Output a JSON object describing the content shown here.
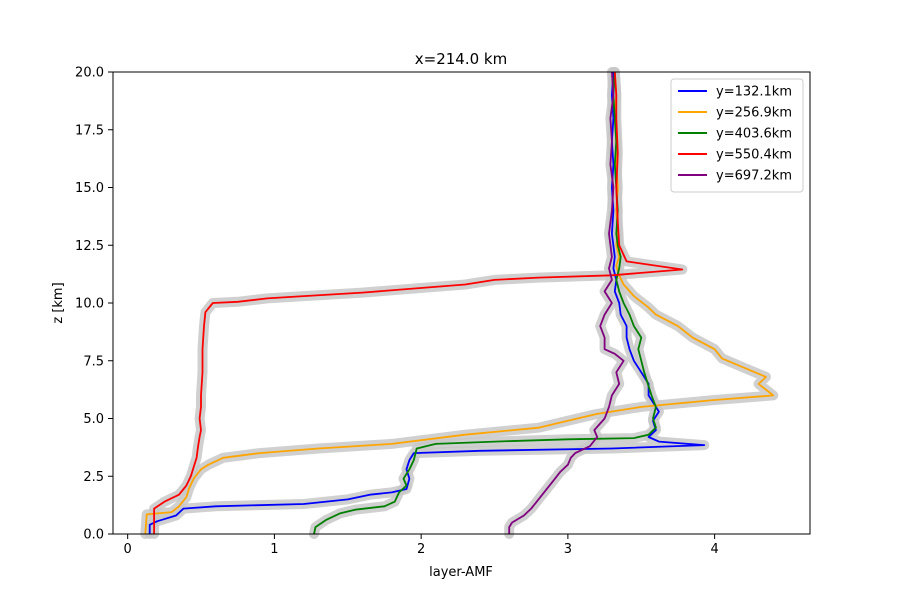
{
  "chart_data": {
    "type": "line",
    "title": "x=214.0 km",
    "xlabel": "layer-AMF",
    "ylabel": "z [km]",
    "xlim": [
      -0.1,
      4.65
    ],
    "ylim": [
      0,
      20
    ],
    "xticks": [
      0,
      1,
      2,
      3,
      4
    ],
    "yticks": [
      0.0,
      2.5,
      5.0,
      7.5,
      10.0,
      12.5,
      15.0,
      17.5,
      20.0
    ],
    "ytick_labels": [
      "0.0",
      "2.5",
      "5.0",
      "7.5",
      "10.0",
      "12.5",
      "15.0",
      "17.5",
      "20.0"
    ],
    "grid": false,
    "legend_position": "top-right",
    "uncertainty_band_color": "#c8c8c8",
    "series": [
      {
        "name": "y=132.1km",
        "color": "#0000ff",
        "points": [
          [
            0.15,
            0
          ],
          [
            0.15,
            0.4
          ],
          [
            0.2,
            0.55
          ],
          [
            0.33,
            0.8
          ],
          [
            0.38,
            1.1
          ],
          [
            0.6,
            1.2
          ],
          [
            1.2,
            1.3
          ],
          [
            1.5,
            1.5
          ],
          [
            1.65,
            1.7
          ],
          [
            1.8,
            1.8
          ],
          [
            1.9,
            1.95
          ],
          [
            1.92,
            2.4
          ],
          [
            1.9,
            2.8
          ],
          [
            1.92,
            3.2
          ],
          [
            1.95,
            3.5
          ],
          [
            2.4,
            3.6
          ],
          [
            3.3,
            3.7
          ],
          [
            3.93,
            3.85
          ],
          [
            3.62,
            4.0
          ],
          [
            3.55,
            4.2
          ],
          [
            3.6,
            4.5
          ],
          [
            3.58,
            4.9
          ],
          [
            3.62,
            5.3
          ],
          [
            3.58,
            5.7
          ],
          [
            3.55,
            6.0
          ],
          [
            3.55,
            6.5
          ],
          [
            3.5,
            7.0
          ],
          [
            3.45,
            7.5
          ],
          [
            3.42,
            8.0
          ],
          [
            3.4,
            8.5
          ],
          [
            3.4,
            9.0
          ],
          [
            3.36,
            9.5
          ],
          [
            3.35,
            10.0
          ],
          [
            3.32,
            10.5
          ],
          [
            3.33,
            11.0
          ],
          [
            3.31,
            11.5
          ],
          [
            3.32,
            12.0
          ],
          [
            3.3,
            13.0
          ],
          [
            3.31,
            14.0
          ],
          [
            3.3,
            15.0
          ],
          [
            3.31,
            16.0
          ],
          [
            3.3,
            17.0
          ],
          [
            3.31,
            18.0
          ],
          [
            3.3,
            19.0
          ],
          [
            3.31,
            20.0
          ]
        ]
      },
      {
        "name": "y=256.9km",
        "color": "#ffa500",
        "points": [
          [
            0.12,
            0
          ],
          [
            0.13,
            0.85
          ],
          [
            0.3,
            0.95
          ],
          [
            0.35,
            1.2
          ],
          [
            0.4,
            1.6
          ],
          [
            0.42,
            2.0
          ],
          [
            0.45,
            2.4
          ],
          [
            0.5,
            2.8
          ],
          [
            0.55,
            3.0
          ],
          [
            0.65,
            3.3
          ],
          [
            0.9,
            3.5
          ],
          [
            1.3,
            3.7
          ],
          [
            1.8,
            3.9
          ],
          [
            2.3,
            4.3
          ],
          [
            2.8,
            4.6
          ],
          [
            3.0,
            4.9
          ],
          [
            3.2,
            5.2
          ],
          [
            3.5,
            5.5
          ],
          [
            4.0,
            5.8
          ],
          [
            4.4,
            6.0
          ],
          [
            4.3,
            6.5
          ],
          [
            4.35,
            6.8
          ],
          [
            4.2,
            7.2
          ],
          [
            4.05,
            7.6
          ],
          [
            4.0,
            8.0
          ],
          [
            3.85,
            8.5
          ],
          [
            3.75,
            9.0
          ],
          [
            3.6,
            9.5
          ],
          [
            3.55,
            9.8
          ],
          [
            3.45,
            10.3
          ],
          [
            3.38,
            10.8
          ],
          [
            3.35,
            11.2
          ],
          [
            3.33,
            11.6
          ],
          [
            3.35,
            12.0
          ],
          [
            3.33,
            12.5
          ],
          [
            3.34,
            13.0
          ],
          [
            3.33,
            14.0
          ],
          [
            3.34,
            15.0
          ],
          [
            3.33,
            16.0
          ],
          [
            3.33,
            17.0
          ],
          [
            3.32,
            18.0
          ],
          [
            3.33,
            19.0
          ],
          [
            3.32,
            20.0
          ]
        ]
      },
      {
        "name": "y=403.6km",
        "color": "#008000",
        "points": [
          [
            1.27,
            0
          ],
          [
            1.28,
            0.3
          ],
          [
            1.35,
            0.6
          ],
          [
            1.45,
            0.9
          ],
          [
            1.55,
            1.05
          ],
          [
            1.75,
            1.2
          ],
          [
            1.82,
            1.4
          ],
          [
            1.85,
            1.8
          ],
          [
            1.9,
            2.1
          ],
          [
            1.88,
            2.4
          ],
          [
            1.92,
            2.8
          ],
          [
            1.95,
            3.2
          ],
          [
            1.97,
            3.7
          ],
          [
            2.1,
            3.9
          ],
          [
            2.5,
            4.0
          ],
          [
            3.0,
            4.1
          ],
          [
            3.45,
            4.15
          ],
          [
            3.55,
            4.3
          ],
          [
            3.6,
            4.6
          ],
          [
            3.58,
            5.0
          ],
          [
            3.6,
            5.5
          ],
          [
            3.57,
            6.0
          ],
          [
            3.55,
            6.4
          ],
          [
            3.52,
            7.0
          ],
          [
            3.5,
            7.5
          ],
          [
            3.48,
            8.0
          ],
          [
            3.5,
            8.5
          ],
          [
            3.45,
            9.0
          ],
          [
            3.42,
            9.5
          ],
          [
            3.38,
            10.0
          ],
          [
            3.35,
            10.5
          ],
          [
            3.33,
            11.0
          ],
          [
            3.35,
            11.5
          ],
          [
            3.36,
            12.0
          ],
          [
            3.34,
            12.5
          ],
          [
            3.33,
            13.0
          ],
          [
            3.34,
            14.0
          ],
          [
            3.33,
            15.0
          ],
          [
            3.32,
            16.0
          ],
          [
            3.33,
            17.0
          ],
          [
            3.32,
            18.0
          ],
          [
            3.31,
            19.0
          ],
          [
            3.32,
            20.0
          ]
        ]
      },
      {
        "name": "y=550.4km",
        "color": "#ff0000",
        "points": [
          [
            0.18,
            0
          ],
          [
            0.18,
            1.1
          ],
          [
            0.25,
            1.4
          ],
          [
            0.35,
            1.7
          ],
          [
            0.4,
            2.1
          ],
          [
            0.43,
            2.5
          ],
          [
            0.45,
            2.9
          ],
          [
            0.47,
            3.3
          ],
          [
            0.48,
            3.8
          ],
          [
            0.49,
            4.2
          ],
          [
            0.5,
            4.5
          ],
          [
            0.49,
            5.0
          ],
          [
            0.5,
            5.5
          ],
          [
            0.5,
            6.0
          ],
          [
            0.51,
            7.0
          ],
          [
            0.51,
            8.0
          ],
          [
            0.52,
            9.0
          ],
          [
            0.53,
            9.6
          ],
          [
            0.58,
            10.0
          ],
          [
            0.75,
            10.05
          ],
          [
            0.95,
            10.2
          ],
          [
            1.2,
            10.3
          ],
          [
            1.6,
            10.45
          ],
          [
            2.3,
            10.8
          ],
          [
            2.5,
            11.0
          ],
          [
            2.8,
            11.1
          ],
          [
            3.3,
            11.2
          ],
          [
            3.78,
            11.45
          ],
          [
            3.4,
            11.8
          ],
          [
            3.35,
            12.5
          ],
          [
            3.34,
            13.5
          ],
          [
            3.33,
            15.0
          ],
          [
            3.34,
            16.5
          ],
          [
            3.33,
            18.0
          ],
          [
            3.33,
            19.0
          ],
          [
            3.32,
            20.0
          ]
        ]
      },
      {
        "name": "y=697.2km",
        "color": "#800080",
        "points": [
          [
            2.6,
            0
          ],
          [
            2.6,
            0.3
          ],
          [
            2.62,
            0.5
          ],
          [
            2.7,
            0.8
          ],
          [
            2.75,
            1.1
          ],
          [
            2.8,
            1.5
          ],
          [
            2.85,
            1.9
          ],
          [
            2.9,
            2.3
          ],
          [
            2.95,
            2.7
          ],
          [
            3.0,
            3.0
          ],
          [
            3.02,
            3.3
          ],
          [
            3.05,
            3.5
          ],
          [
            3.15,
            3.8
          ],
          [
            3.2,
            4.2
          ],
          [
            3.18,
            4.5
          ],
          [
            3.25,
            5.0
          ],
          [
            3.28,
            5.5
          ],
          [
            3.3,
            6.0
          ],
          [
            3.35,
            6.5
          ],
          [
            3.33,
            7.0
          ],
          [
            3.38,
            7.5
          ],
          [
            3.32,
            7.8
          ],
          [
            3.25,
            8.0
          ],
          [
            3.25,
            8.5
          ],
          [
            3.22,
            9.0
          ],
          [
            3.25,
            9.5
          ],
          [
            3.3,
            10.0
          ],
          [
            3.25,
            10.5
          ],
          [
            3.3,
            11.0
          ],
          [
            3.28,
            11.5
          ],
          [
            3.3,
            12.0
          ],
          [
            3.28,
            13.0
          ],
          [
            3.3,
            14.0
          ],
          [
            3.31,
            15.0
          ],
          [
            3.29,
            16.0
          ],
          [
            3.3,
            17.0
          ],
          [
            3.29,
            18.0
          ],
          [
            3.31,
            19.0
          ],
          [
            3.3,
            20.0
          ]
        ]
      }
    ]
  }
}
